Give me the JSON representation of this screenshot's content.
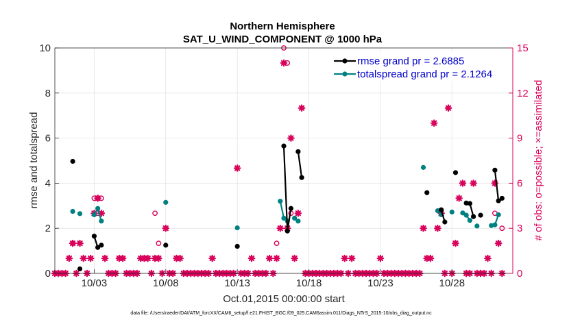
{
  "chart_data": {
    "type": "line",
    "title": [
      "Northern Hemisphere",
      "SAT_U_WIND_COMPONENT @ 1000 hPa"
    ],
    "xlabel": "Oct.01,2015 00:00:00 start",
    "ylabel_left": "rmse and totalspread",
    "ylabel_right": "# of obs: o=possible; ×=assimilated",
    "xlim": [
      1.0,
      33.0
    ],
    "ylim_left": [
      0,
      10
    ],
    "ylim_right": [
      0,
      15
    ],
    "yticks_left": [
      "0",
      "2",
      "4",
      "6",
      "8",
      "10"
    ],
    "yticks_right": [
      "0",
      "3",
      "6",
      "9",
      "12",
      "15"
    ],
    "xticks": [
      {
        "x": 3.75,
        "label": "10/03"
      },
      {
        "x": 8.75,
        "label": "10/08"
      },
      {
        "x": 13.75,
        "label": "10/13"
      },
      {
        "x": 18.75,
        "label": "10/18"
      },
      {
        "x": 23.75,
        "label": "10/23"
      },
      {
        "x": 28.75,
        "label": "10/28"
      }
    ],
    "colors": {
      "rmse": "#000000",
      "spread": "#008080",
      "obs": "#d8005a"
    },
    "series": [
      {
        "name": "rmse grand pr = 2.6885",
        "color": "#000000",
        "segments": [
          [
            [
              2.25,
              4.97
            ]
          ],
          [
            [
              2.75,
              0.2
            ]
          ],
          [
            [
              3.75,
              1.65
            ],
            [
              4.0,
              1.15
            ],
            [
              4.25,
              1.25
            ]
          ],
          [
            [
              8.75,
              1.25
            ]
          ],
          [
            [
              13.75,
              1.2
            ]
          ],
          [
            [
              17.0,
              5.65
            ],
            [
              17.25,
              1.88
            ],
            [
              17.5,
              2.88
            ]
          ],
          [
            [
              18.0,
              5.4
            ],
            [
              18.25,
              4.25
            ]
          ],
          [
            [
              27.0,
              3.58
            ]
          ],
          [
            [
              28.0,
              2.82
            ],
            [
              28.25,
              2.28
            ]
          ],
          [
            [
              29.0,
              4.47
            ]
          ],
          [
            [
              29.75,
              3.12
            ],
            [
              30.0,
              3.1
            ],
            [
              30.25,
              2.52
            ]
          ],
          [
            [
              30.75,
              2.58
            ]
          ],
          [
            [
              31.75,
              4.58
            ],
            [
              32.0,
              3.22
            ],
            [
              32.25,
              3.33
            ]
          ]
        ]
      },
      {
        "name": "totalspread grand pr = 2.1264",
        "color": "#008080",
        "segments": [
          [
            [
              2.25,
              2.75
            ]
          ],
          [
            [
              2.75,
              2.65
            ]
          ],
          [
            [
              3.75,
              2.6
            ],
            [
              4.0,
              2.88
            ],
            [
              4.25,
              2.32
            ]
          ],
          [
            [
              8.75,
              3.15
            ]
          ],
          [
            [
              13.75,
              2.02
            ]
          ],
          [
            [
              16.75,
              3.2
            ],
            [
              17.0,
              2.45
            ],
            [
              17.25,
              2.32
            ]
          ],
          [
            [
              17.75,
              2.45
            ],
            [
              18.0,
              2.32
            ]
          ],
          [
            [
              26.75,
              4.7
            ]
          ],
          [
            [
              27.75,
              2.78
            ],
            [
              28.0,
              2.6
            ]
          ],
          [
            [
              28.75,
              2.72
            ]
          ],
          [
            [
              29.5,
              2.68
            ],
            [
              29.75,
              2.58
            ],
            [
              30.0,
              2.35
            ]
          ],
          [
            [
              30.5,
              2.1
            ]
          ],
          [
            [
              31.5,
              2.12
            ],
            [
              31.75,
              2.15
            ],
            [
              32.0,
              2.6
            ]
          ]
        ]
      }
    ],
    "obs_possible": [
      [
        2.25,
        2.0
      ],
      [
        3.75,
        5.0
      ],
      [
        4.0,
        5.0
      ],
      [
        4.25,
        5.0
      ],
      [
        4.0,
        4.0
      ],
      [
        8.0,
        4.0
      ],
      [
        8.25,
        2.0
      ],
      [
        16.5,
        2.0
      ],
      [
        17.0,
        15.0
      ],
      [
        17.25,
        14.0
      ],
      [
        17.5,
        4.0
      ],
      [
        31.75,
        4.0
      ],
      [
        32.25,
        3.0
      ]
    ],
    "obs_assimilated": [
      [
        1.0,
        0
      ],
      [
        1.25,
        0
      ],
      [
        1.5,
        0
      ],
      [
        1.75,
        0
      ],
      [
        2.0,
        1
      ],
      [
        2.25,
        2
      ],
      [
        2.5,
        0
      ],
      [
        2.75,
        2
      ],
      [
        3.0,
        1
      ],
      [
        3.25,
        0
      ],
      [
        3.5,
        1
      ],
      [
        3.75,
        4
      ],
      [
        4.0,
        5
      ],
      [
        4.25,
        4
      ],
      [
        4.5,
        1
      ],
      [
        4.75,
        0
      ],
      [
        5.0,
        0
      ],
      [
        5.25,
        0
      ],
      [
        5.5,
        1
      ],
      [
        5.75,
        1
      ],
      [
        6.0,
        0
      ],
      [
        6.25,
        0
      ],
      [
        6.5,
        0
      ],
      [
        6.75,
        0
      ],
      [
        7.0,
        1
      ],
      [
        7.25,
        1
      ],
      [
        7.5,
        1
      ],
      [
        7.75,
        0
      ],
      [
        8.0,
        1
      ],
      [
        8.25,
        1
      ],
      [
        8.5,
        0
      ],
      [
        8.75,
        3
      ],
      [
        9.0,
        0
      ],
      [
        9.25,
        0
      ],
      [
        9.5,
        1
      ],
      [
        9.75,
        1
      ],
      [
        10.0,
        0
      ],
      [
        10.25,
        0
      ],
      [
        10.5,
        0
      ],
      [
        10.75,
        0
      ],
      [
        11.0,
        0
      ],
      [
        11.25,
        0
      ],
      [
        11.5,
        0
      ],
      [
        11.75,
        0
      ],
      [
        12.0,
        1
      ],
      [
        12.25,
        0
      ],
      [
        12.5,
        0
      ],
      [
        12.75,
        0
      ],
      [
        13.0,
        0
      ],
      [
        13.25,
        0
      ],
      [
        13.5,
        0
      ],
      [
        13.75,
        7
      ],
      [
        14.0,
        0
      ],
      [
        14.25,
        0
      ],
      [
        14.5,
        0
      ],
      [
        14.75,
        1
      ],
      [
        15.0,
        0
      ],
      [
        15.25,
        0
      ],
      [
        15.5,
        0
      ],
      [
        15.75,
        0
      ],
      [
        16.0,
        1
      ],
      [
        16.25,
        0
      ],
      [
        16.5,
        1
      ],
      [
        16.75,
        3
      ],
      [
        17.0,
        14
      ],
      [
        17.25,
        3
      ],
      [
        17.5,
        9
      ],
      [
        17.75,
        1
      ],
      [
        18.0,
        4
      ],
      [
        18.25,
        11
      ],
      [
        18.5,
        0
      ],
      [
        18.75,
        0
      ],
      [
        19.0,
        0
      ],
      [
        19.25,
        0
      ],
      [
        19.5,
        0
      ],
      [
        19.75,
        0
      ],
      [
        20.0,
        0
      ],
      [
        20.25,
        0
      ],
      [
        20.5,
        0
      ],
      [
        20.75,
        0
      ],
      [
        21.0,
        0
      ],
      [
        21.25,
        1
      ],
      [
        21.5,
        0
      ],
      [
        21.75,
        1
      ],
      [
        22.0,
        0
      ],
      [
        22.25,
        0
      ],
      [
        22.5,
        0
      ],
      [
        22.75,
        0
      ],
      [
        23.0,
        0
      ],
      [
        23.25,
        0
      ],
      [
        23.5,
        0
      ],
      [
        23.75,
        1
      ],
      [
        24.0,
        0
      ],
      [
        24.25,
        0
      ],
      [
        24.5,
        0
      ],
      [
        24.75,
        0
      ],
      [
        25.0,
        0
      ],
      [
        25.25,
        0
      ],
      [
        25.5,
        0
      ],
      [
        25.75,
        0
      ],
      [
        26.0,
        0
      ],
      [
        26.25,
        0
      ],
      [
        26.5,
        0
      ],
      [
        26.75,
        3
      ],
      [
        27.0,
        1
      ],
      [
        27.25,
        1
      ],
      [
        27.5,
        10
      ],
      [
        27.75,
        3
      ],
      [
        28.0,
        4
      ],
      [
        28.25,
        0
      ],
      [
        28.5,
        11
      ],
      [
        28.75,
        0
      ],
      [
        29.0,
        2
      ],
      [
        29.25,
        5
      ],
      [
        29.5,
        6
      ],
      [
        29.75,
        0
      ],
      [
        30.0,
        0
      ],
      [
        30.25,
        6
      ],
      [
        30.5,
        0
      ],
      [
        30.75,
        0
      ],
      [
        31.0,
        0
      ],
      [
        31.25,
        1
      ],
      [
        31.5,
        0
      ],
      [
        31.75,
        6
      ],
      [
        32.0,
        2
      ],
      [
        32.25,
        0
      ]
    ],
    "footnote": "data file: /Users/raeder/DAI/ATM_forcXX/CAM6_setup/f.e21.FHIST_BGC.f09_025.CAM6assim.011/Diags_NTrS_2015-10/obs_diag_output.nc"
  }
}
